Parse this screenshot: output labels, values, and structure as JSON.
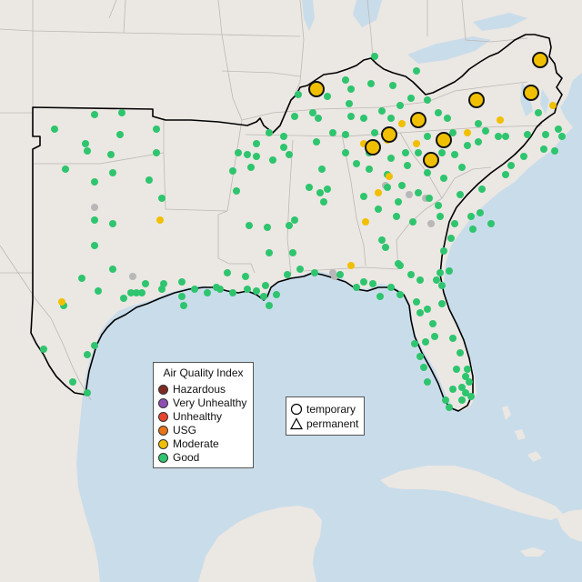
{
  "colors": {
    "water": "#c9dcea",
    "land": "#ebe7e3",
    "state_lines": "#bdb8b3",
    "region_outline": "#000000",
    "hazardous": "#7e2a22",
    "very_unhealthy": "#8f4fb2",
    "unhealthy": "#e8432e",
    "usg": "#e8741a",
    "moderate": "#f0c000",
    "good": "#2ec56e",
    "no_data": "#b8b8b8"
  },
  "legend": {
    "title": "Air Quality Index",
    "categories": [
      {
        "label": "Hazardous",
        "color": "#7e2a22"
      },
      {
        "label": "Very Unhealthy",
        "color": "#8f4fb2"
      },
      {
        "label": "Unhealthy",
        "color": "#e8432e"
      },
      {
        "label": "USG",
        "color": "#e8741a"
      },
      {
        "label": "Moderate",
        "color": "#f0c000"
      },
      {
        "label": "Good",
        "color": "#2ec56e"
      }
    ]
  },
  "monitor_type_legend": {
    "temporary": "temporary",
    "permanent": "permanent"
  },
  "map": {
    "region": "Southeastern United States",
    "region_outline": "AQI reporting region boundary",
    "large_marker_category": "Moderate",
    "large_marker_type": "temporary"
  }
}
